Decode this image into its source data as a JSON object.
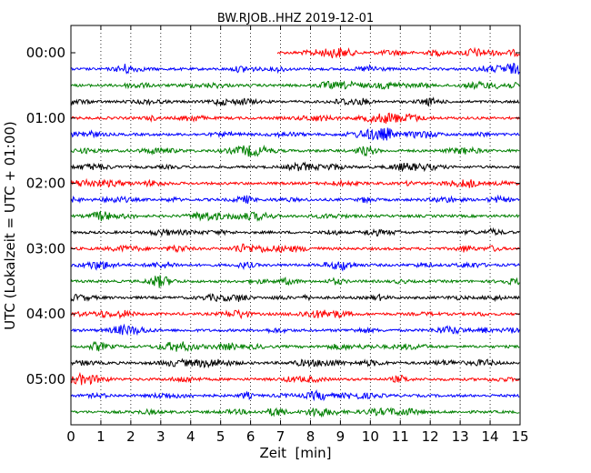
{
  "chart_data": {
    "type": "line",
    "title": "BW.RJOB..HHZ 2019-12-01",
    "xlabel": "Zeit  [min]",
    "ylabel": "UTC (Lokalzeit = UTC + 01:00)",
    "xlim": [
      0,
      15
    ],
    "x_ticks": [
      "0",
      "1",
      "2",
      "3",
      "4",
      "5",
      "6",
      "7",
      "8",
      "9",
      "10",
      "11",
      "12",
      "13",
      "14",
      "15"
    ],
    "y_tick_labels": [
      "00:00",
      "01:00",
      "02:00",
      "03:00",
      "04:00",
      "05:00"
    ],
    "trace_interval_min": 15,
    "traces_start": "00:00",
    "traces_count": 23,
    "first_trace_data_start_min": 6.9,
    "color_cycle": [
      "#ff0000",
      "#0000ff",
      "#008000",
      "#000000"
    ],
    "grid": "vertical dotted at each minute"
  }
}
